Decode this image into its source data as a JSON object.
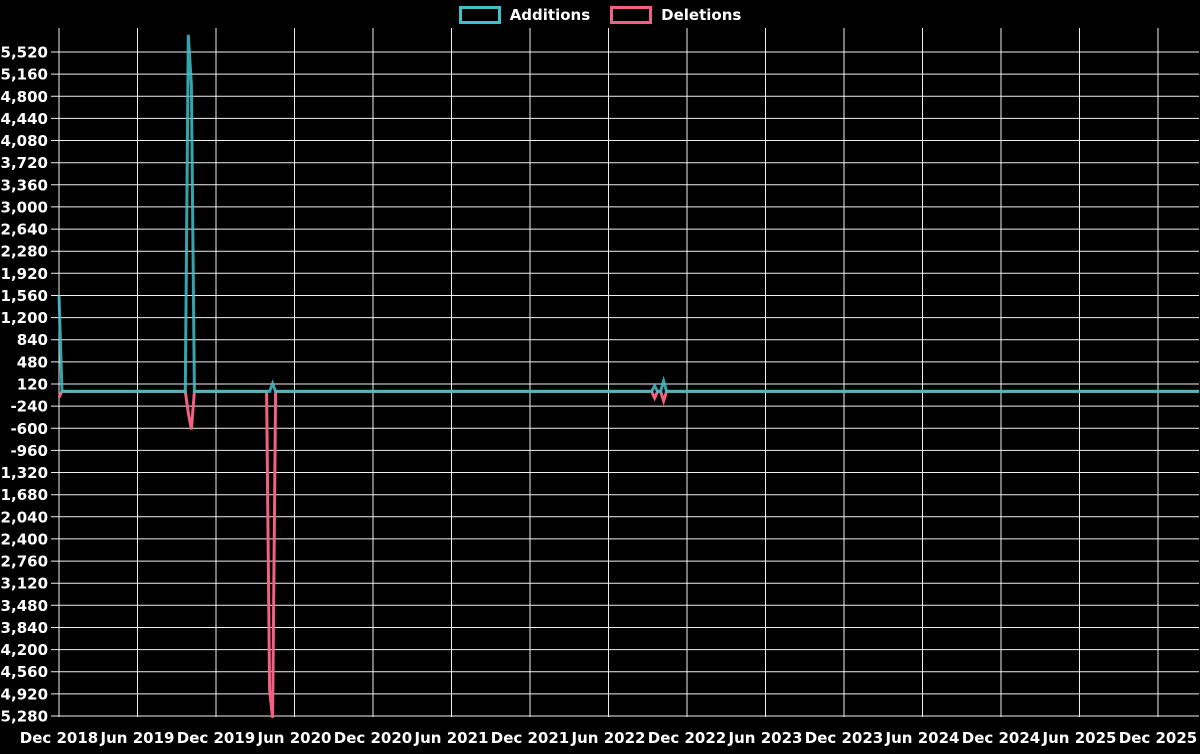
{
  "legend": [
    {
      "label": "Additions",
      "color": "#3fc1c9"
    },
    {
      "label": "Deletions",
      "color": "#f2617f"
    }
  ],
  "chart_data": {
    "type": "line",
    "title": "",
    "xlabel": "",
    "ylabel": "",
    "background_color": "#000000",
    "grid_color": "#f0f0f0",
    "text_color": "#ffffff",
    "grid": true,
    "legend_position": "top-center",
    "y_axis": {
      "min": -5280,
      "max": 5520,
      "tick_step": 360
    },
    "y_tick_values": [
      5520,
      5160,
      4800,
      4440,
      4080,
      3720,
      3360,
      3000,
      2640,
      2280,
      1920,
      1560,
      1200,
      840,
      480,
      120,
      -240,
      -600,
      -960,
      -1320,
      -1680,
      -2040,
      -2400,
      -2760,
      -3120,
      -3480,
      -3840,
      -4200,
      -4560,
      -4920,
      -5280
    ],
    "y_tick_labels": [
      "5,520",
      "5,160",
      "4,800",
      "4,440",
      "4,080",
      "3,720",
      "3,360",
      "3,000",
      "2,640",
      "2,280",
      "1,920",
      "1,560",
      "1,200",
      "840",
      "480",
      "120",
      "-240",
      "-600",
      "-960",
      "-1,320",
      "-1,680",
      "-2,040",
      "-2,400",
      "-2,760",
      "-3,120",
      "-3,480",
      "-3,840",
      "-4,200",
      "-4,560",
      "-4,920",
      "-5,280"
    ],
    "x_tick_labels": [
      "Dec 2018",
      "Jun 2019",
      "Dec 2019",
      "Jun 2020",
      "Dec 2020",
      "Jun 2021",
      "Dec 2021",
      "Jun 2022",
      "Dec 2022",
      "Jun 2023",
      "Dec 2023",
      "Jun 2024",
      "Dec 2024",
      "Jun 2025",
      "Dec 2025"
    ],
    "x_unit": "week",
    "weeks_total": 379,
    "baseline_value": 0,
    "series": [
      {
        "name": "Additions",
        "color": "#3fc1c9",
        "events": [
          {
            "week": 0,
            "value": 1560
          },
          {
            "week": 43,
            "value": 5800
          },
          {
            "week": 44,
            "value": 4980
          },
          {
            "week": 71,
            "value": 130
          },
          {
            "week": 198,
            "value": 90
          },
          {
            "week": 201,
            "value": 170
          }
        ]
      },
      {
        "name": "Deletions",
        "color": "#f2617f",
        "events": [
          {
            "week": 0,
            "value": -100
          },
          {
            "week": 43,
            "value": -350
          },
          {
            "week": 44,
            "value": -620
          },
          {
            "week": 70,
            "value": -4860
          },
          {
            "week": 71,
            "value": -5310
          },
          {
            "week": 198,
            "value": -110
          },
          {
            "week": 201,
            "value": -155
          }
        ]
      }
    ]
  }
}
